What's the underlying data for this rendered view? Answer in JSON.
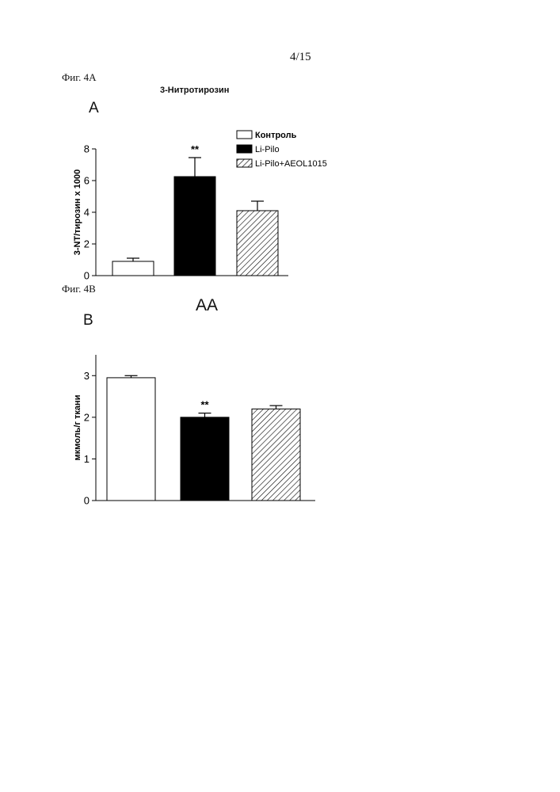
{
  "page": {
    "page_number": "4/15",
    "fig_a_caption": "Фиг. 4А",
    "fig_b_caption": "Фиг. 4В"
  },
  "panels": {
    "a_letter": "A",
    "b_letter": "B"
  },
  "colors": {
    "control": "#ffffff",
    "li_pilo": "#000000",
    "li_pilo_aeol": "hatched"
  },
  "chart_data": [
    {
      "type": "bar",
      "title": "3-Нитротирозин",
      "ylabel": "3-NT/тирозин x 1000",
      "xlabel": "",
      "ylim": [
        0,
        8
      ],
      "yticks": [
        "0",
        "2",
        "4",
        "6",
        "8"
      ],
      "legend": [
        "Контроль",
        "Li-Pilo",
        "Li-Pilo+AEOL1015"
      ],
      "legend_position": "top-right",
      "categories": [
        "Контроль",
        "Li-Pilo",
        "Li-Pilo+AEOL1015"
      ],
      "values": [
        0.9,
        6.25,
        4.1
      ],
      "errors": [
        0.2,
        1.2,
        0.6
      ],
      "fills": [
        "white",
        "black",
        "hatch"
      ],
      "annotations": [
        "",
        "**",
        ""
      ]
    },
    {
      "type": "bar",
      "title": "AA",
      "ylabel": "мкмоль/г ткани",
      "xlabel": "",
      "ylim": [
        0,
        3.5
      ],
      "yticks": [
        "0",
        "1",
        "2",
        "3"
      ],
      "categories": [
        "Контроль",
        "Li-Pilo",
        "Li-Pilo+AEOL1015"
      ],
      "values": [
        2.95,
        2.0,
        2.2
      ],
      "errors": [
        0.05,
        0.1,
        0.08
      ],
      "fills": [
        "white",
        "black",
        "hatch"
      ],
      "annotations": [
        "",
        "**",
        ""
      ]
    }
  ]
}
